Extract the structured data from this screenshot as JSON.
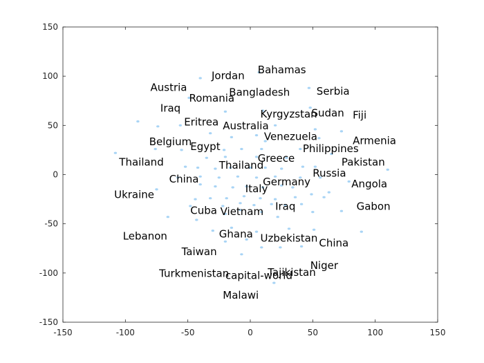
{
  "chart_data": {
    "type": "scatter",
    "title": "",
    "xlabel": "",
    "ylabel": "",
    "xlim": [
      -150,
      150
    ],
    "ylim": [
      -150,
      150
    ],
    "xticks": [
      -150,
      -100,
      -50,
      0,
      50,
      100,
      150
    ],
    "yticks": [
      -150,
      -100,
      -50,
      0,
      50,
      100,
      150
    ],
    "grid": false,
    "point_color": "#a8d4f5",
    "label_color": "#000000",
    "labels": [
      {
        "text": "Bahamas",
        "x": 6,
        "y": 103
      },
      {
        "text": "Jordan",
        "x": -31,
        "y": 97
      },
      {
        "text": "Austria",
        "x": -80,
        "y": 85
      },
      {
        "text": "Bangladesh",
        "x": -17,
        "y": 80
      },
      {
        "text": "Serbia",
        "x": 53,
        "y": 81
      },
      {
        "text": "Romania",
        "x": -49,
        "y": 74
      },
      {
        "text": "Iraq",
        "x": -72,
        "y": 64
      },
      {
        "text": "Sudan",
        "x": 49,
        "y": 59
      },
      {
        "text": "Kyrgyzstan",
        "x": 8,
        "y": 58
      },
      {
        "text": "Fiji",
        "x": 82,
        "y": 57
      },
      {
        "text": "Eritrea",
        "x": -53,
        "y": 50
      },
      {
        "text": "Australia",
        "x": -22,
        "y": 46
      },
      {
        "text": "Venezuela",
        "x": 11,
        "y": 35
      },
      {
        "text": "Armenia",
        "x": 82,
        "y": 31
      },
      {
        "text": "Belgium",
        "x": -81,
        "y": 30
      },
      {
        "text": "Egypt",
        "x": -48,
        "y": 25
      },
      {
        "text": "Philippines",
        "x": 42,
        "y": 23
      },
      {
        "text": "Greece",
        "x": 6,
        "y": 13
      },
      {
        "text": "Thailand",
        "x": -105,
        "y": 9
      },
      {
        "text": "Pakistan",
        "x": 73,
        "y": 9
      },
      {
        "text": "Thailand",
        "x": -25,
        "y": 6
      },
      {
        "text": "Russia",
        "x": 50,
        "y": -2
      },
      {
        "text": "China",
        "x": -65,
        "y": -8
      },
      {
        "text": "Germany",
        "x": 10,
        "y": -11
      },
      {
        "text": "Angola",
        "x": 81,
        "y": -13
      },
      {
        "text": "Italy",
        "x": -4,
        "y": -18
      },
      {
        "text": "Ukraine",
        "x": -109,
        "y": -24
      },
      {
        "text": "Iraq",
        "x": 20,
        "y": -36
      },
      {
        "text": "Gabon",
        "x": 85,
        "y": -36
      },
      {
        "text": "Cuba",
        "x": -48,
        "y": -40
      },
      {
        "text": "Vietnam",
        "x": -24,
        "y": -41
      },
      {
        "text": "Ghana",
        "x": -25,
        "y": -64
      },
      {
        "text": "Uzbekistan",
        "x": 8,
        "y": -68
      },
      {
        "text": "Lebanon",
        "x": -102,
        "y": -66
      },
      {
        "text": "China",
        "x": 55,
        "y": -73
      },
      {
        "text": "Taiwan",
        "x": -55,
        "y": -82
      },
      {
        "text": "Niger",
        "x": 48,
        "y": -96
      },
      {
        "text": "Turkmenistan",
        "x": -73,
        "y": -104
      },
      {
        "text": "capital-world",
        "x": -20,
        "y": -106
      },
      {
        "text": "Tajikistan",
        "x": 14,
        "y": -103
      },
      {
        "text": "Malawi",
        "x": -22,
        "y": -126
      }
    ],
    "points": [
      [
        7,
        104
      ],
      [
        -40,
        98
      ],
      [
        47,
        88
      ],
      [
        -49,
        78
      ],
      [
        -20,
        64
      ],
      [
        48,
        68
      ],
      [
        10,
        65
      ],
      [
        -90,
        54
      ],
      [
        -74,
        49
      ],
      [
        -56,
        50
      ],
      [
        20,
        50
      ],
      [
        52,
        46
      ],
      [
        73,
        44
      ],
      [
        -32,
        42
      ],
      [
        -15,
        38
      ],
      [
        5,
        40
      ],
      [
        12,
        34
      ],
      [
        55,
        37
      ],
      [
        -108,
        22
      ],
      [
        -76,
        26
      ],
      [
        -55,
        25
      ],
      [
        -21,
        25
      ],
      [
        -7,
        26
      ],
      [
        9,
        26
      ],
      [
        40,
        26
      ],
      [
        -35,
        17
      ],
      [
        -20,
        18
      ],
      [
        5,
        18
      ],
      [
        29,
        17
      ],
      [
        65,
        21
      ],
      [
        -52,
        8
      ],
      [
        -42,
        7
      ],
      [
        -28,
        6
      ],
      [
        -16,
        7
      ],
      [
        0,
        7
      ],
      [
        12,
        7
      ],
      [
        25,
        6
      ],
      [
        42,
        8
      ],
      [
        52,
        8
      ],
      [
        110,
        5
      ],
      [
        -58,
        -3
      ],
      [
        -40,
        -2
      ],
      [
        -25,
        -3
      ],
      [
        -10,
        -2
      ],
      [
        5,
        -3
      ],
      [
        20,
        -2
      ],
      [
        40,
        -3
      ],
      [
        56,
        -3
      ],
      [
        79,
        -7
      ],
      [
        -75,
        -15
      ],
      [
        -40,
        -10
      ],
      [
        -28,
        -12
      ],
      [
        -14,
        -13
      ],
      [
        -3,
        -12
      ],
      [
        10,
        -13
      ],
      [
        25,
        -11
      ],
      [
        34,
        -13
      ],
      [
        49,
        -20
      ],
      [
        63,
        -18
      ],
      [
        -44,
        -25
      ],
      [
        -32,
        -24
      ],
      [
        -19,
        -24
      ],
      [
        -5,
        -22
      ],
      [
        8,
        -24
      ],
      [
        20,
        -25
      ],
      [
        36,
        -23
      ],
      [
        59,
        -23
      ],
      [
        -48,
        -32
      ],
      [
        -22,
        -32
      ],
      [
        -8,
        -29
      ],
      [
        3,
        -31
      ],
      [
        17,
        -30
      ],
      [
        28,
        -31
      ],
      [
        41,
        -30
      ],
      [
        -66,
        -43
      ],
      [
        -43,
        -46
      ],
      [
        -20,
        -40
      ],
      [
        -8,
        -36
      ],
      [
        9,
        -38
      ],
      [
        22,
        -43
      ],
      [
        50,
        -38
      ],
      [
        73,
        -37
      ],
      [
        -30,
        -57
      ],
      [
        -15,
        -54
      ],
      [
        5,
        -58
      ],
      [
        31,
        -55
      ],
      [
        51,
        -56
      ],
      [
        89,
        -58
      ],
      [
        -20,
        -68
      ],
      [
        -3,
        -66
      ],
      [
        9,
        -74
      ],
      [
        24,
        -74
      ],
      [
        41,
        -73
      ],
      [
        -7,
        -81
      ],
      [
        19,
        -110
      ]
    ]
  }
}
